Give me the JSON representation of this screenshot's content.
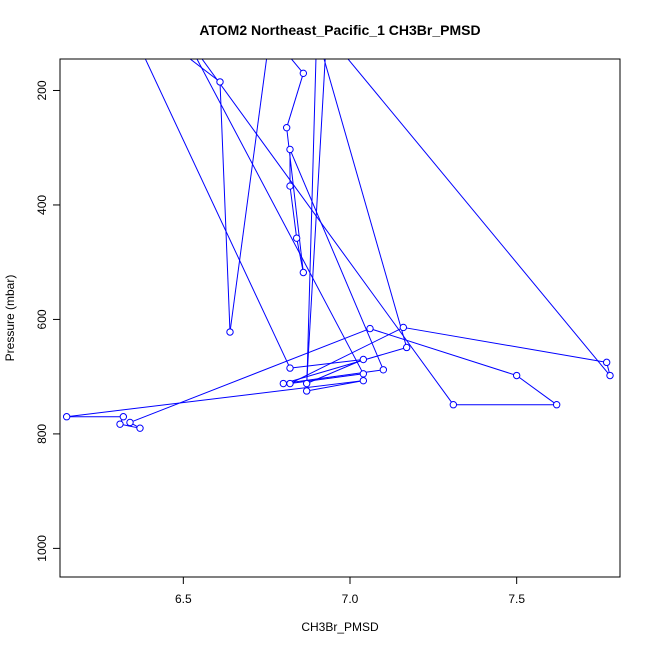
{
  "chart_data": {
    "type": "line",
    "title": "ATOM2 Northeast_Pacific_1 CH3Br_PMSD",
    "xlabel": "CH3Br_PMSD",
    "ylabel": "Pressure (mbar)",
    "xlim": [
      6.13,
      7.81
    ],
    "ylim": [
      1050,
      145
    ],
    "y_reversed": true,
    "xticks": [
      6.5,
      7.0,
      7.5
    ],
    "xtick_labels": [
      "6.5",
      "7.0",
      "7.5"
    ],
    "yticks": [
      200,
      400,
      600,
      800,
      1000
    ],
    "ytick_labels": [
      "200",
      "400",
      "600",
      "800",
      "1000"
    ],
    "grid": false,
    "legend": "none",
    "series": [
      {
        "color": "#0000ff",
        "marker": "open-circle",
        "points": [
          {
            "x": 6.42,
            "y": 100
          },
          {
            "x": 6.61,
            "y": 185
          },
          {
            "x": 6.64,
            "y": 622
          },
          {
            "x": 6.76,
            "y": 100
          },
          {
            "x": 6.86,
            "y": 170
          },
          {
            "x": 6.81,
            "y": 265
          },
          {
            "x": 6.86,
            "y": 518
          },
          {
            "x": 6.84,
            "y": 458
          },
          {
            "x": 6.82,
            "y": 367
          },
          {
            "x": 6.82,
            "y": 303
          },
          {
            "x": 7.1,
            "y": 688
          },
          {
            "x": 6.8,
            "y": 712
          },
          {
            "x": 7.17,
            "y": 649
          },
          {
            "x": 6.9,
            "y": 100
          },
          {
            "x": 6.87,
            "y": 725
          },
          {
            "x": 7.04,
            "y": 707
          },
          {
            "x": 6.15,
            "y": 770
          },
          {
            "x": 6.32,
            "y": 770
          },
          {
            "x": 6.31,
            "y": 783
          },
          {
            "x": 6.37,
            "y": 790
          },
          {
            "x": 6.34,
            "y": 780
          },
          {
            "x": 7.06,
            "y": 616
          },
          {
            "x": 7.5,
            "y": 698
          },
          {
            "x": 7.62,
            "y": 749
          },
          {
            "x": 7.31,
            "y": 749
          },
          {
            "x": 6.5,
            "y": 100
          },
          {
            "x": 7.04,
            "y": 695
          },
          {
            "x": 6.82,
            "y": 712
          },
          {
            "x": 7.16,
            "y": 614
          },
          {
            "x": 7.77,
            "y": 675
          },
          {
            "x": 7.78,
            "y": 698
          },
          {
            "x": 6.93,
            "y": 100
          },
          {
            "x": 6.87,
            "y": 712
          },
          {
            "x": 7.04,
            "y": 670
          },
          {
            "x": 6.82,
            "y": 685
          },
          {
            "x": 6.35,
            "y": 100
          }
        ]
      }
    ]
  }
}
